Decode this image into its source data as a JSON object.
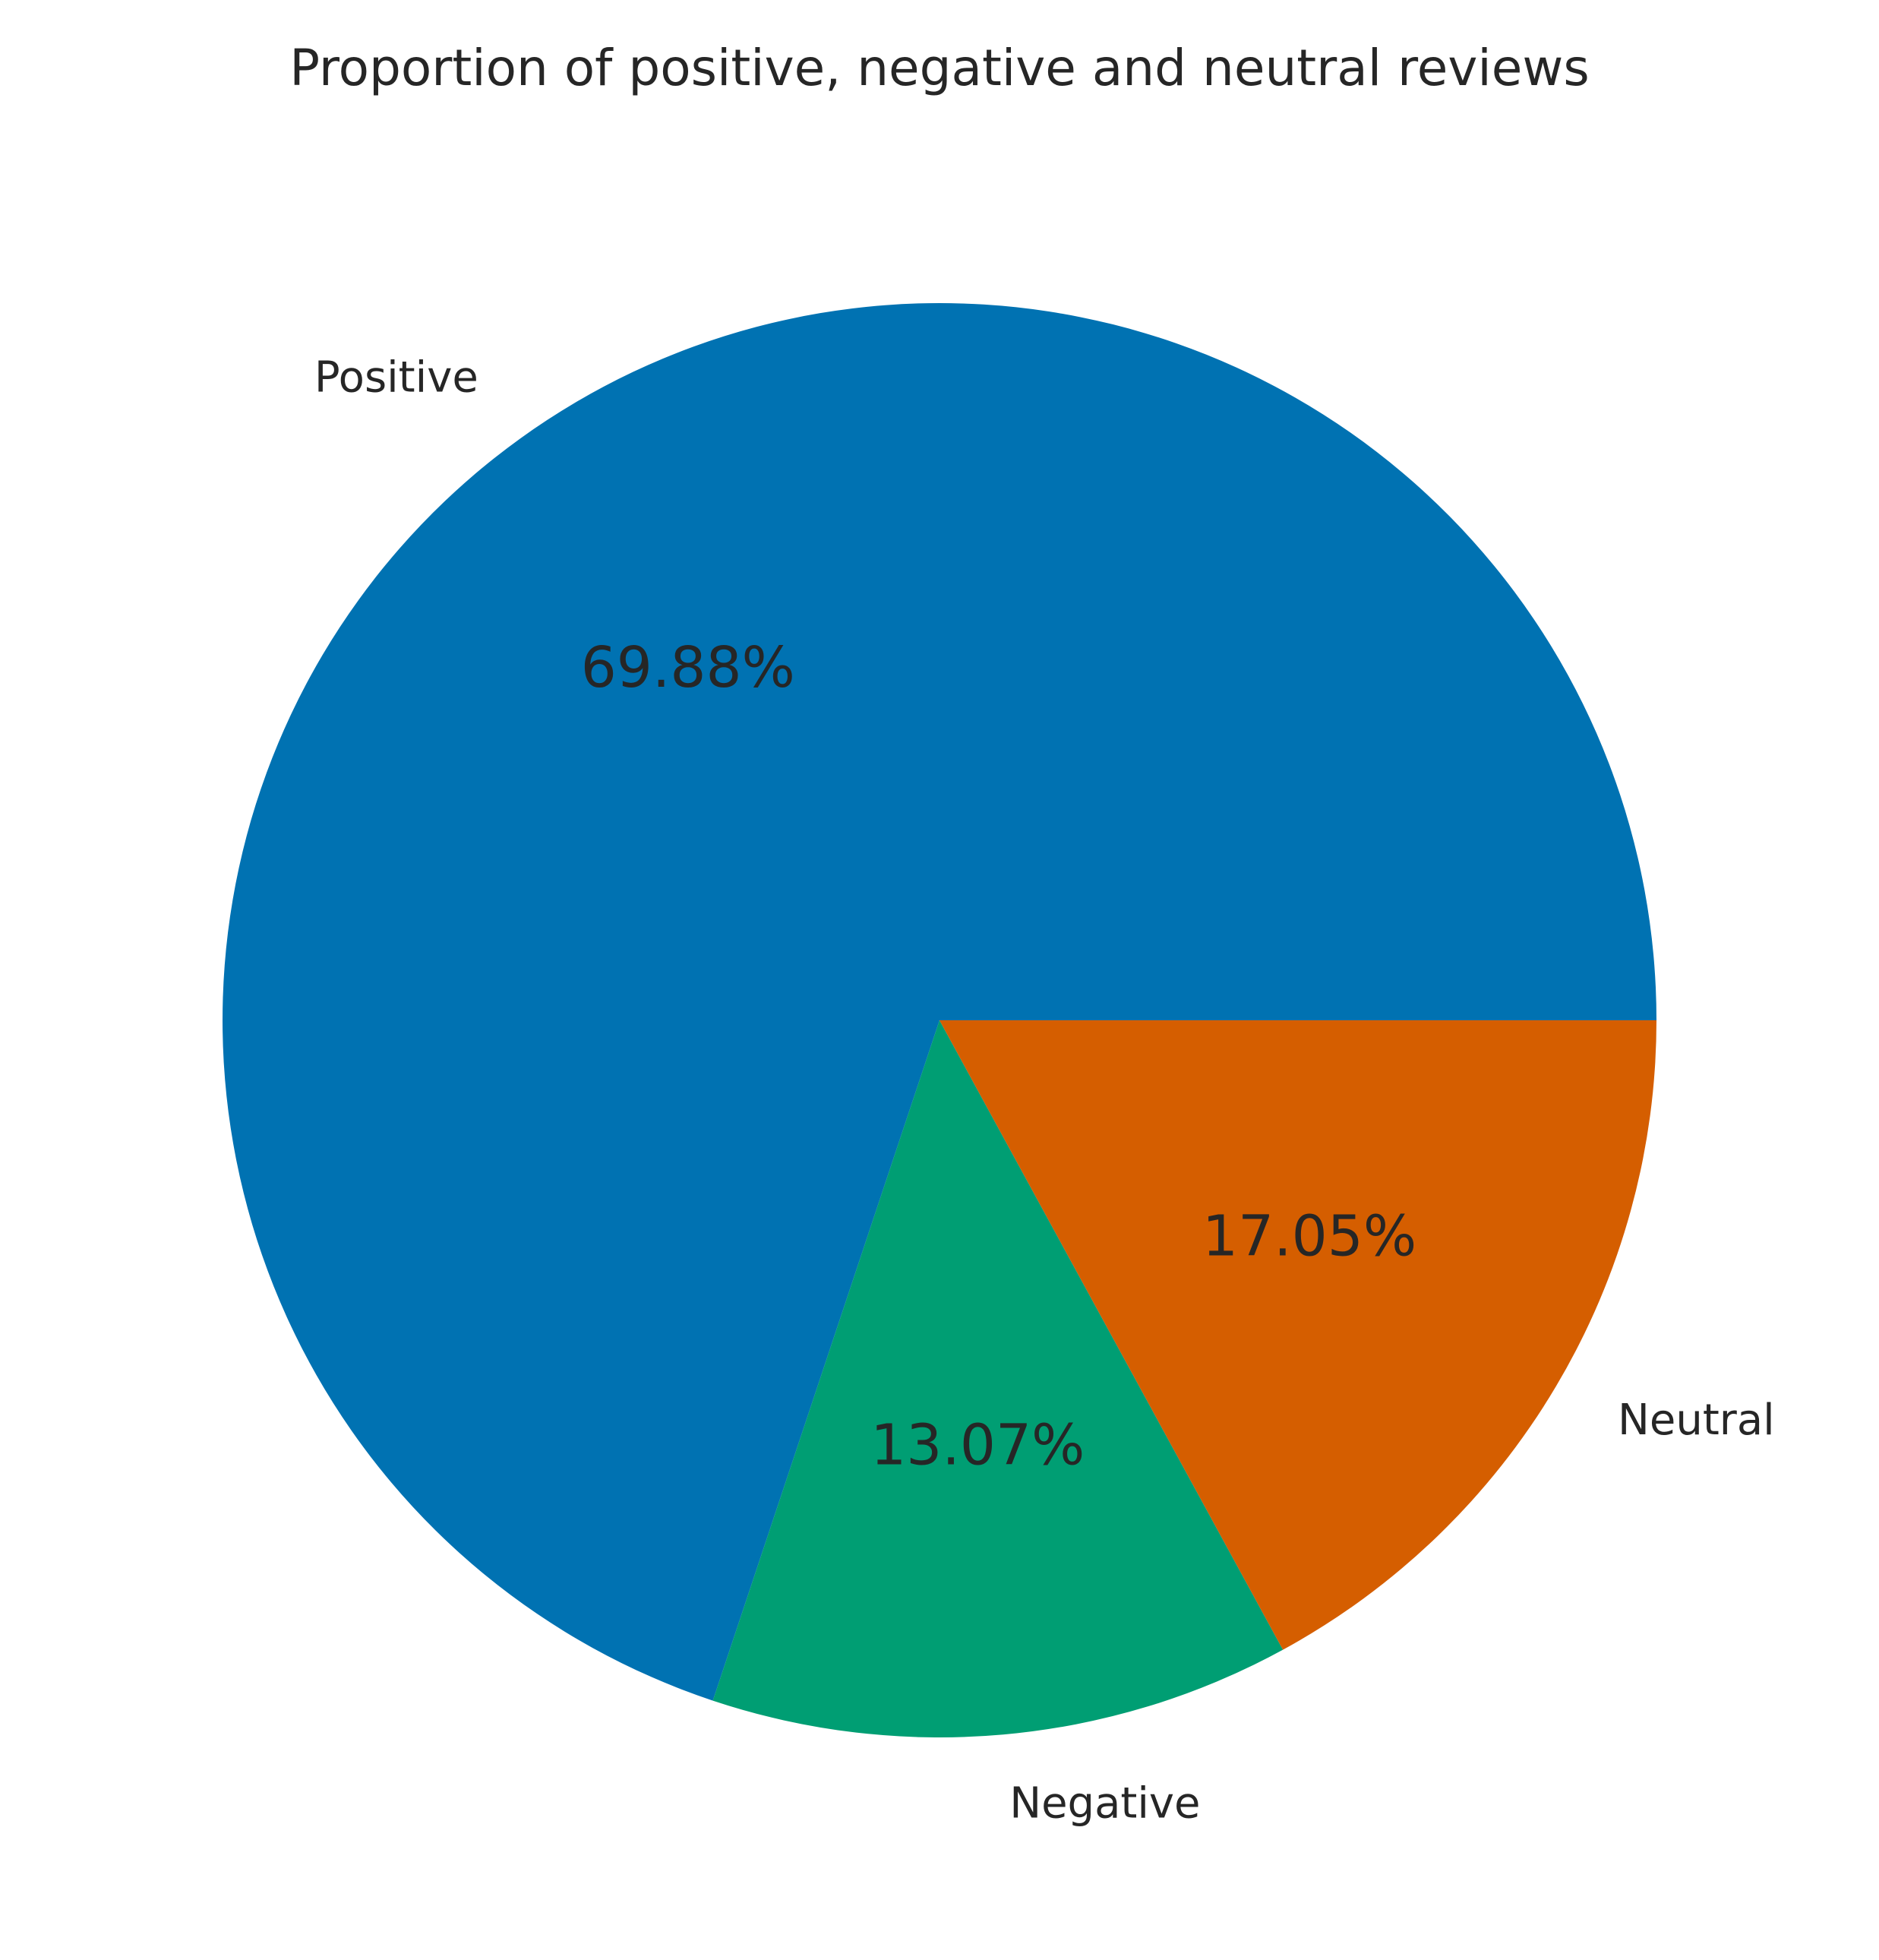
{
  "chart_data": {
    "type": "pie",
    "title": "Proportion of positive, negative and neutral reviews",
    "slices": [
      {
        "label": "Positive",
        "value": 69.88,
        "display": "69.88%",
        "color": "#0072b2"
      },
      {
        "label": "Negative",
        "value": 13.07,
        "display": "13.07%",
        "color": "#009e73"
      },
      {
        "label": "Neutral",
        "value": 17.05,
        "display": "17.05%",
        "color": "#d55e00"
      }
    ],
    "start_angle_deg": 0,
    "direction": "counterclockwise",
    "legend": "none"
  },
  "colors": {
    "text": "#262626",
    "background": "#ffffff"
  }
}
